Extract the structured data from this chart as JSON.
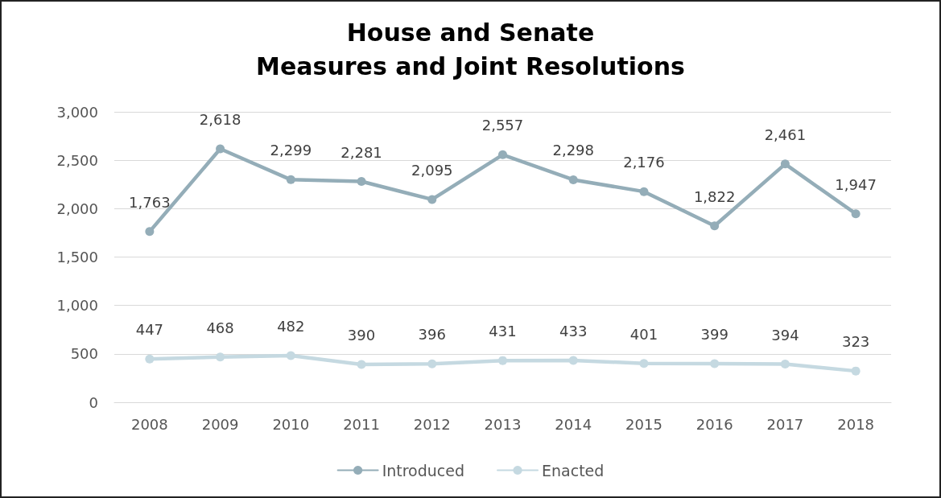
{
  "chart_data": {
    "type": "line",
    "title": "House and Senate\nMeasures and Joint Resolutions",
    "categories": [
      "2008",
      "2009",
      "2010",
      "2011",
      "2012",
      "2013",
      "2014",
      "2015",
      "2016",
      "2017",
      "2018"
    ],
    "series": [
      {
        "name": "Introduced",
        "color": "#94adb8",
        "values": [
          1763,
          2618,
          2299,
          2281,
          2095,
          2557,
          2298,
          2176,
          1822,
          2461,
          1947
        ],
        "value_labels": [
          "1,763",
          "2,618",
          "2,299",
          "2,281",
          "2,095",
          "2,557",
          "2,298",
          "2,176",
          "1,822",
          "2,461",
          "1,947"
        ]
      },
      {
        "name": "Enacted",
        "color": "#c5d9e1",
        "values": [
          447,
          468,
          482,
          390,
          396,
          431,
          433,
          401,
          399,
          394,
          323
        ],
        "value_labels": [
          "447",
          "468",
          "482",
          "390",
          "396",
          "431",
          "433",
          "401",
          "399",
          "394",
          "323"
        ]
      }
    ],
    "ylim": [
      0,
      3000
    ],
    "yticks": [
      0,
      500,
      {
        "value": 1000,
        "label": "1,000"
      },
      {
        "value": 1500,
        "label": "1,500"
      },
      {
        "value": 2000,
        "label": "2,000"
      },
      {
        "value": 2500,
        "label": "2,500"
      },
      {
        "value": 3000,
        "label": "3,000"
      }
    ],
    "grid": "y",
    "legend": "bottom",
    "marker": "circle",
    "line_style": "solid"
  }
}
